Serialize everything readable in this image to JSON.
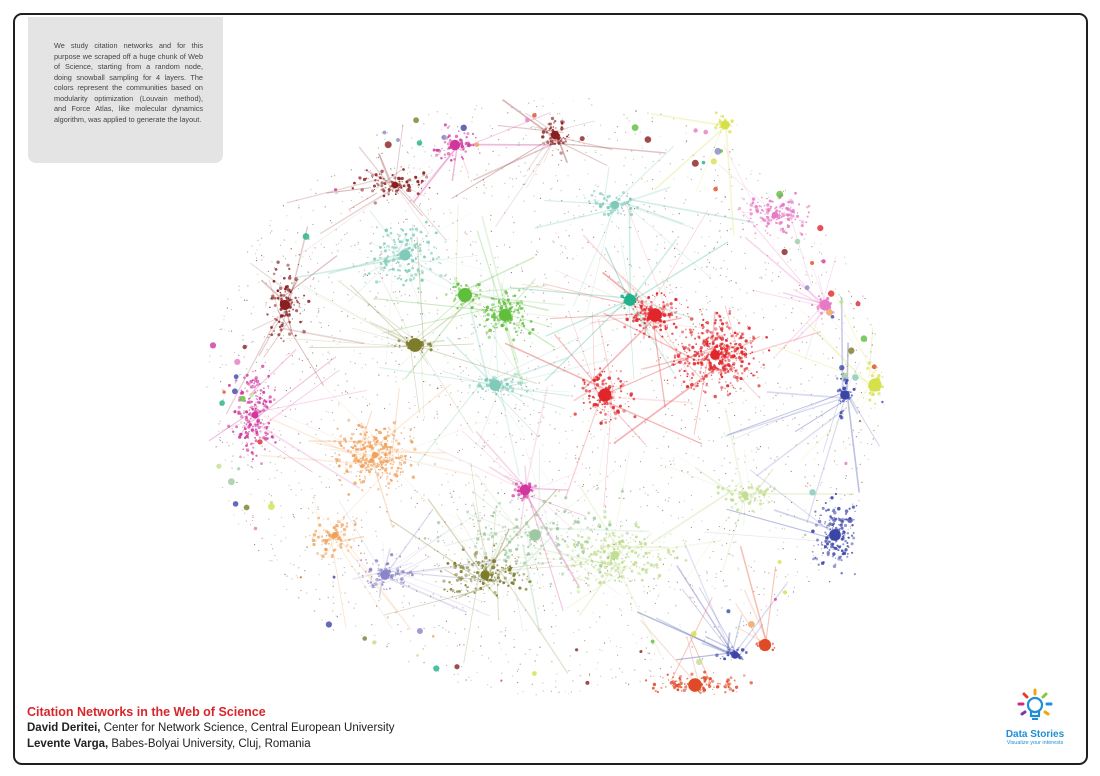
{
  "description": "We study citation networks and for this purpose we scraped off a huge chunk of Web of Science, starting from a random node, doing snowball sampling for 4 layers. The colors represent the communities based on modularity optimization (Louvain method), and Force Atlas, like molecular dynamics algorithm, was applied to generate the layout.",
  "title": "Citation Networks in the Web of Science",
  "authors": [
    {
      "name": "David Deritei,",
      "affiliation": "Center for Network Science, Central European University"
    },
    {
      "name": "Levente Varga,",
      "affiliation": "Babes-Bolyai University, Cluj, Romania"
    }
  ],
  "logo": {
    "title": "Data Stories",
    "subtitle": "Visualize your interests",
    "icon": "lightbulb-icon"
  },
  "colors": {
    "frame": "#1f1f1f",
    "description_box": "#e4e4e4",
    "title": "#d7262c",
    "logo": "#1d8fd6"
  },
  "communities": [
    {
      "color": "#e0262b"
    },
    {
      "color": "#f0a15a"
    },
    {
      "color": "#d1369d"
    },
    {
      "color": "#8a1f1f"
    },
    {
      "color": "#5fbe3c"
    },
    {
      "color": "#7fcab8"
    },
    {
      "color": "#c2de92"
    },
    {
      "color": "#7c7c2a"
    },
    {
      "color": "#8a85c8"
    },
    {
      "color": "#3b45a8"
    },
    {
      "color": "#e67ac4"
    },
    {
      "color": "#1fb189"
    },
    {
      "color": "#e14a26"
    },
    {
      "color": "#d6e04a"
    },
    {
      "color": "#9ec9a0"
    }
  ]
}
